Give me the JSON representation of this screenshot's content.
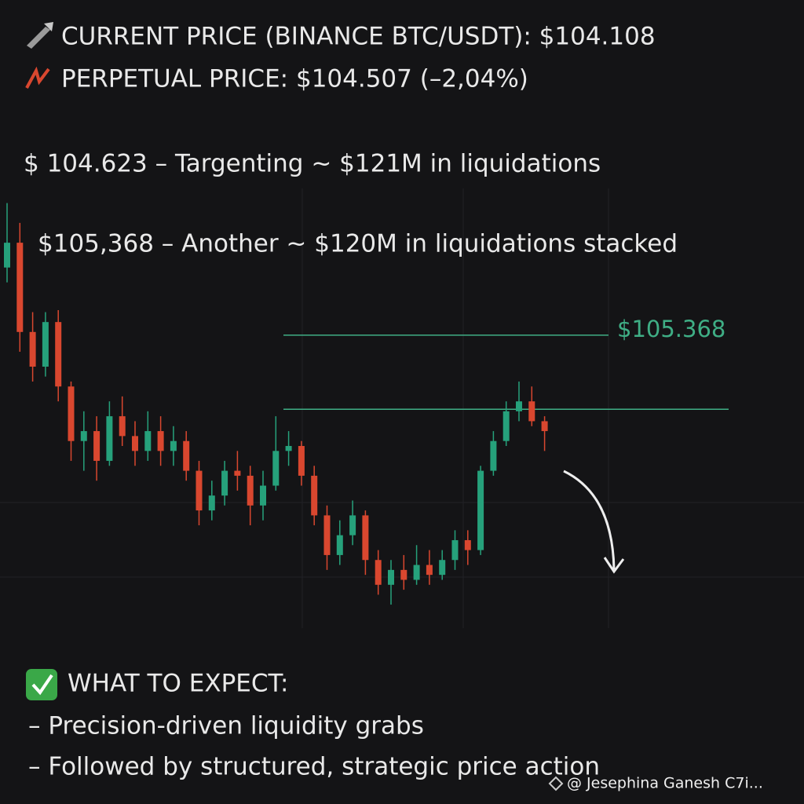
{
  "header": {
    "line1": "CURRENT PRICE (BINANCE BTC/USDT):  $104.108",
    "line2": "PERPETUAL PRICE: $104.507 (–2,04%)",
    "target1": "$ 104.623 – Targenting ~ $121M in liquidations",
    "target2": "$105,368 – Another ~ $120M in liquidations stacked"
  },
  "chart_data": {
    "type": "candlestick",
    "up_color": "#26a17b",
    "down_color": "#d9472f",
    "ylim": [
      102.5,
      106.8
    ],
    "levels": [
      {
        "value": 105.368,
        "label": "$105.368"
      },
      {
        "value": 104.62
      }
    ],
    "level_color": "#3fae85",
    "candles": [
      {
        "open": 106.05,
        "high": 106.7,
        "low": 105.9,
        "close": 106.3
      },
      {
        "open": 106.3,
        "high": 106.5,
        "low": 105.2,
        "close": 105.4
      },
      {
        "open": 105.4,
        "high": 105.6,
        "low": 104.9,
        "close": 105.05
      },
      {
        "open": 105.05,
        "high": 105.6,
        "low": 104.95,
        "close": 105.5
      },
      {
        "open": 105.5,
        "high": 105.62,
        "low": 104.7,
        "close": 104.85
      },
      {
        "open": 104.85,
        "high": 104.9,
        "low": 104.1,
        "close": 104.3
      },
      {
        "open": 104.3,
        "high": 104.6,
        "low": 104.0,
        "close": 104.4
      },
      {
        "open": 104.4,
        "high": 104.55,
        "low": 103.9,
        "close": 104.1
      },
      {
        "open": 104.1,
        "high": 104.7,
        "low": 104.05,
        "close": 104.55
      },
      {
        "open": 104.55,
        "high": 104.75,
        "low": 104.25,
        "close": 104.35
      },
      {
        "open": 104.35,
        "high": 104.5,
        "low": 104.05,
        "close": 104.2
      },
      {
        "open": 104.2,
        "high": 104.6,
        "low": 104.1,
        "close": 104.4
      },
      {
        "open": 104.4,
        "high": 104.55,
        "low": 104.05,
        "close": 104.2
      },
      {
        "open": 104.2,
        "high": 104.45,
        "low": 104.05,
        "close": 104.3
      },
      {
        "open": 104.3,
        "high": 104.4,
        "low": 103.9,
        "close": 104.0
      },
      {
        "open": 104.0,
        "high": 104.1,
        "low": 103.45,
        "close": 103.6
      },
      {
        "open": 103.6,
        "high": 103.9,
        "low": 103.5,
        "close": 103.75
      },
      {
        "open": 103.75,
        "high": 104.1,
        "low": 103.65,
        "close": 104.0
      },
      {
        "open": 104.0,
        "high": 104.2,
        "low": 103.8,
        "close": 103.95
      },
      {
        "open": 103.95,
        "high": 104.05,
        "low": 103.45,
        "close": 103.65
      },
      {
        "open": 103.65,
        "high": 104.0,
        "low": 103.5,
        "close": 103.85
      },
      {
        "open": 103.85,
        "high": 104.55,
        "low": 103.8,
        "close": 104.2
      },
      {
        "open": 104.2,
        "high": 104.4,
        "low": 104.05,
        "close": 104.25
      },
      {
        "open": 104.25,
        "high": 104.3,
        "low": 103.85,
        "close": 103.95
      },
      {
        "open": 103.95,
        "high": 104.05,
        "low": 103.45,
        "close": 103.55
      },
      {
        "open": 103.55,
        "high": 103.65,
        "low": 103.0,
        "close": 103.15
      },
      {
        "open": 103.15,
        "high": 103.5,
        "low": 103.05,
        "close": 103.35
      },
      {
        "open": 103.35,
        "high": 103.7,
        "low": 103.25,
        "close": 103.55
      },
      {
        "open": 103.55,
        "high": 103.6,
        "low": 102.95,
        "close": 103.1
      },
      {
        "open": 103.1,
        "high": 103.2,
        "low": 102.75,
        "close": 102.85
      },
      {
        "open": 102.85,
        "high": 103.1,
        "low": 102.65,
        "close": 103.0
      },
      {
        "open": 103.0,
        "high": 103.15,
        "low": 102.8,
        "close": 102.9
      },
      {
        "open": 102.9,
        "high": 103.25,
        "low": 102.85,
        "close": 103.05
      },
      {
        "open": 103.05,
        "high": 103.2,
        "low": 102.85,
        "close": 102.95
      },
      {
        "open": 102.95,
        "high": 103.2,
        "low": 102.9,
        "close": 103.1
      },
      {
        "open": 103.1,
        "high": 103.4,
        "low": 103.0,
        "close": 103.3
      },
      {
        "open": 103.3,
        "high": 103.4,
        "low": 103.05,
        "close": 103.2
      },
      {
        "open": 103.2,
        "high": 104.05,
        "low": 103.15,
        "close": 104.0
      },
      {
        "open": 104.0,
        "high": 104.4,
        "low": 103.95,
        "close": 104.3
      },
      {
        "open": 104.3,
        "high": 104.7,
        "low": 104.25,
        "close": 104.6
      },
      {
        "open": 104.6,
        "high": 104.9,
        "low": 104.5,
        "close": 104.7
      },
      {
        "open": 104.7,
        "high": 104.85,
        "low": 104.45,
        "close": 104.5
      },
      {
        "open": 104.5,
        "high": 104.55,
        "low": 104.2,
        "close": 104.4
      }
    ]
  },
  "footer": {
    "heading": "WHAT TO EXPECT:",
    "point1": "– Precision-driven liquidity grabs",
    "point2": "– Followed by structured, strategic price action",
    "watermark": "@ Jesephina Ganesh C7i..."
  }
}
